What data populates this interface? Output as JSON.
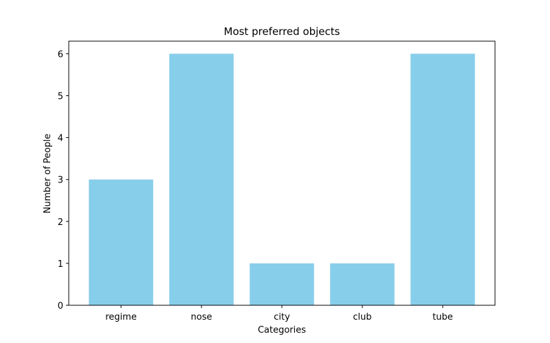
{
  "chart_data": {
    "type": "bar",
    "title": "Most preferred objects",
    "xlabel": "Categories",
    "ylabel": "Number of People",
    "categories": [
      "regime",
      "nose",
      "city",
      "club",
      "tube"
    ],
    "values": [
      3,
      6,
      1,
      1,
      6
    ],
    "ylim": [
      0,
      6.3
    ],
    "yticks": [
      0,
      1,
      2,
      3,
      4,
      5,
      6
    ],
    "bar_color": "#87ceeb",
    "grid": false,
    "legend": "none"
  }
}
